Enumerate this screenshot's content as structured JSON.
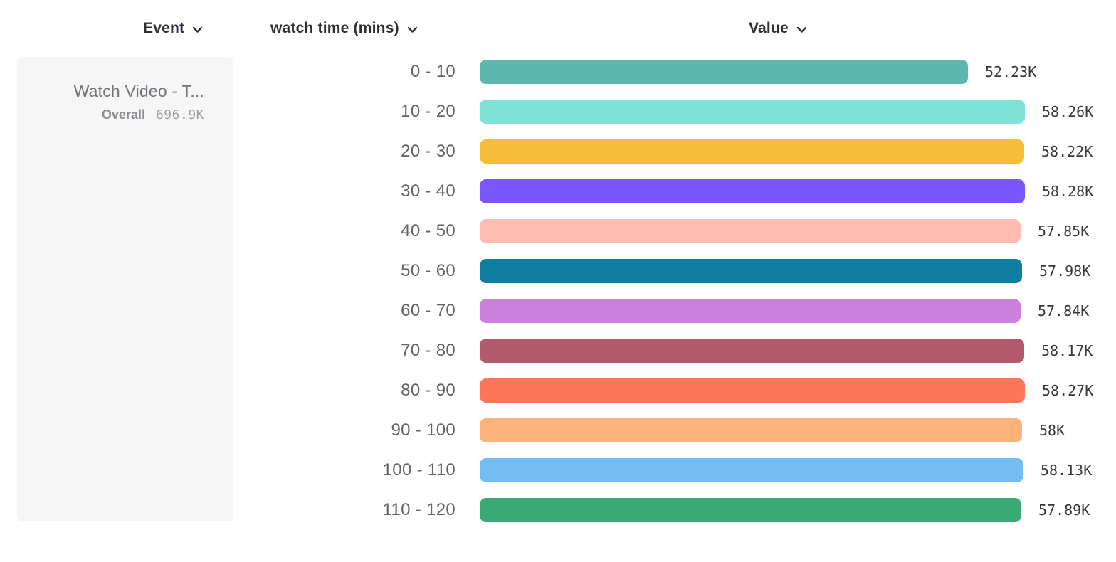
{
  "header": {
    "event_label": "Event",
    "breakdown_label": "watch time (mins)",
    "value_label": "Value"
  },
  "event_card": {
    "title": "Watch Video - T...",
    "overall_label": "Overall",
    "overall_value": "696.9K"
  },
  "icons": {
    "chevron_down": "chevron-down-icon"
  },
  "chart_data": {
    "type": "bar",
    "orientation": "horizontal",
    "title": "",
    "xlabel": "Value",
    "ylabel": "watch time (mins)",
    "grid": false,
    "legend": false,
    "xlim": [
      0,
      58280
    ],
    "categories": [
      "0 - 10",
      "10 - 20",
      "20 - 30",
      "30 - 40",
      "40 - 50",
      "50 - 60",
      "60 - 70",
      "70 - 80",
      "80 - 90",
      "90 - 100",
      "100 - 110",
      "110 - 120"
    ],
    "values": [
      52230,
      58260,
      58220,
      58280,
      57850,
      57980,
      57840,
      58170,
      58270,
      58000,
      58130,
      57890
    ],
    "value_labels": [
      "52.23K",
      "58.26K",
      "58.22K",
      "58.28K",
      "57.85K",
      "57.98K",
      "57.84K",
      "58.17K",
      "58.27K",
      "58K",
      "58.13K",
      "57.89K"
    ],
    "bar_colors": [
      "#5BB7AF",
      "#80E1D9",
      "#F8BC3B",
      "#7856FF",
      "#FEBBB2",
      "#0D7EA0",
      "#CA80DC",
      "#B2596E",
      "#FF7557",
      "#FFB27A",
      "#72BEF4",
      "#3BA974"
    ],
    "overall_total": "696.9K",
    "series_event": "Watch Video - T..."
  }
}
